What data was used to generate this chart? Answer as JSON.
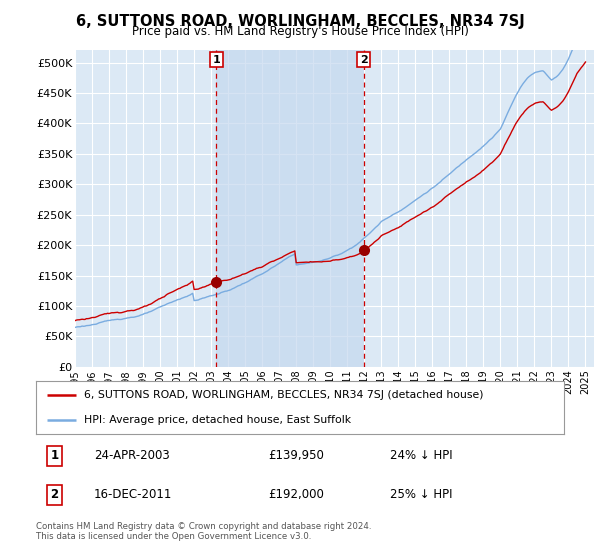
{
  "title": "6, SUTTONS ROAD, WORLINGHAM, BECCLES, NR34 7SJ",
  "subtitle": "Price paid vs. HM Land Registry's House Price Index (HPI)",
  "ylabel_ticks": [
    "£0",
    "£50K",
    "£100K",
    "£150K",
    "£200K",
    "£250K",
    "£300K",
    "£350K",
    "£400K",
    "£450K",
    "£500K"
  ],
  "ytick_values": [
    0,
    50000,
    100000,
    150000,
    200000,
    250000,
    300000,
    350000,
    400000,
    450000,
    500000
  ],
  "ylim": [
    0,
    520000
  ],
  "xlim_start": 1995.0,
  "xlim_end": 2025.5,
  "background_color": "#dce9f5",
  "shade_color": "#c5d8ee",
  "grid_color": "#ffffff",
  "sale1_date": 2003.31,
  "sale1_price": 139950,
  "sale2_date": 2011.96,
  "sale2_price": 192000,
  "red_line_color": "#cc0000",
  "blue_line_color": "#7aace0",
  "dashed_line_color": "#cc0000",
  "marker_color": "#990000",
  "legend_red_label": "6, SUTTONS ROAD, WORLINGHAM, BECCLES, NR34 7SJ (detached house)",
  "legend_blue_label": "HPI: Average price, detached house, East Suffolk",
  "annotation1_text": "24-APR-2003",
  "annotation1_price": "£139,950",
  "annotation1_hpi": "24% ↓ HPI",
  "annotation2_text": "16-DEC-2011",
  "annotation2_price": "£192,000",
  "annotation2_hpi": "25% ↓ HPI",
  "footer": "Contains HM Land Registry data © Crown copyright and database right 2024.\nThis data is licensed under the Open Government Licence v3.0."
}
